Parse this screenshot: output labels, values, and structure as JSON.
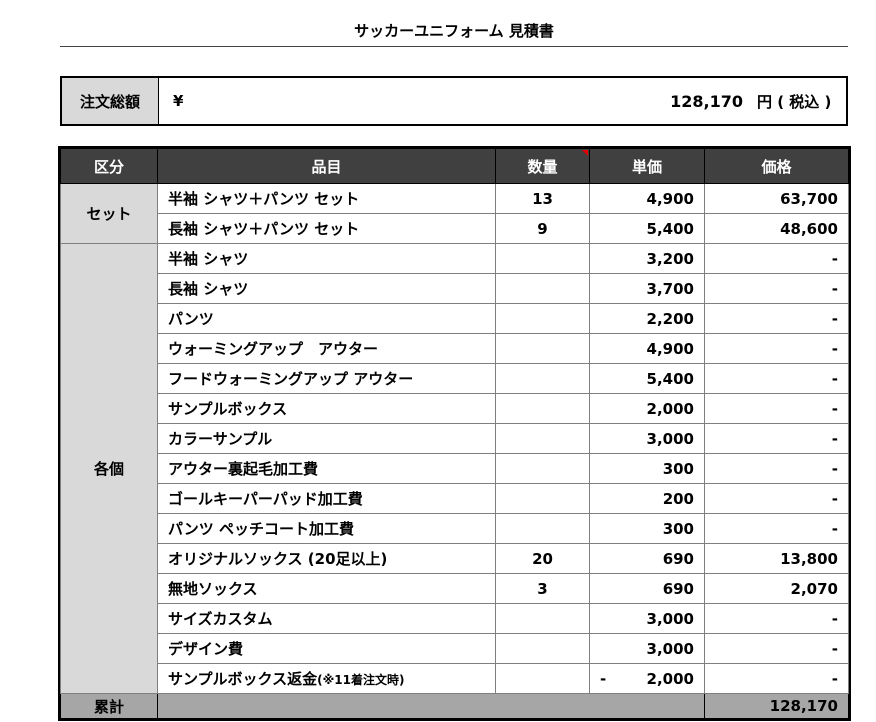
{
  "title": "サッカーユニフォーム 見積書",
  "order_total": {
    "label": "注文総額",
    "currency": "¥",
    "amount": "128,170",
    "suffix": "円 ( 税込 )"
  },
  "table": {
    "headers": [
      "区分",
      "品目",
      "数量",
      "単価",
      "価格"
    ],
    "categories": {
      "set": "セット",
      "individual": "各個"
    },
    "set_rows": [
      {
        "item": "半袖 シャツ＋パンツ セット",
        "qty": "13",
        "unit": "4,900",
        "price": "63,700"
      },
      {
        "item": "長袖 シャツ＋パンツ セット",
        "qty": "9",
        "unit": "5,400",
        "price": "48,600"
      }
    ],
    "individual_rows": [
      {
        "item": "半袖 シャツ",
        "qty": "",
        "unit": "3,200",
        "price": "-"
      },
      {
        "item": "長袖 シャツ",
        "qty": "",
        "unit": "3,700",
        "price": "-"
      },
      {
        "item": "パンツ",
        "qty": "",
        "unit": "2,200",
        "price": "-"
      },
      {
        "item": "ウォーミングアップ　アウター",
        "qty": "",
        "unit": "4,900",
        "price": "-"
      },
      {
        "item": "フードウォーミングアップ アウター",
        "qty": "",
        "unit": "5,400",
        "price": "-"
      },
      {
        "item": "サンプルボックス",
        "qty": "",
        "unit": "2,000",
        "price": "-"
      },
      {
        "item": "カラーサンプル",
        "qty": "",
        "unit": "3,000",
        "price": "-"
      },
      {
        "item": "アウター裏起毛加工費",
        "qty": "",
        "unit": "300",
        "price": "-"
      },
      {
        "item": "ゴールキーパーパッド加工費",
        "qty": "",
        "unit": "200",
        "price": "-"
      },
      {
        "item": "パンツ ペッチコート加工費",
        "qty": "",
        "unit": "300",
        "price": "-"
      },
      {
        "item": "オリジナルソックス (20足以上)",
        "qty": "20",
        "unit": "690",
        "price": "13,800"
      },
      {
        "item": "無地ソックス",
        "qty": "3",
        "unit": "690",
        "price": "2,070"
      },
      {
        "item": "サイズカスタム",
        "qty": "",
        "unit": "3,000",
        "price": "-"
      },
      {
        "item": "デザイン費",
        "qty": "",
        "unit": "3,000",
        "price": "-"
      }
    ],
    "refund_row": {
      "item": "サンプルボックス返金",
      "note": "(※11着注文時)",
      "unit_sign": "-",
      "unit": "2,000",
      "price": "-"
    },
    "sum_row": {
      "label": "累計",
      "price": "128,170"
    }
  },
  "colors": {
    "header_bg": "#404040",
    "category_bg": "#d9d9d9",
    "sum_bg": "#a6a6a6",
    "comment_marker": "#e00000"
  }
}
